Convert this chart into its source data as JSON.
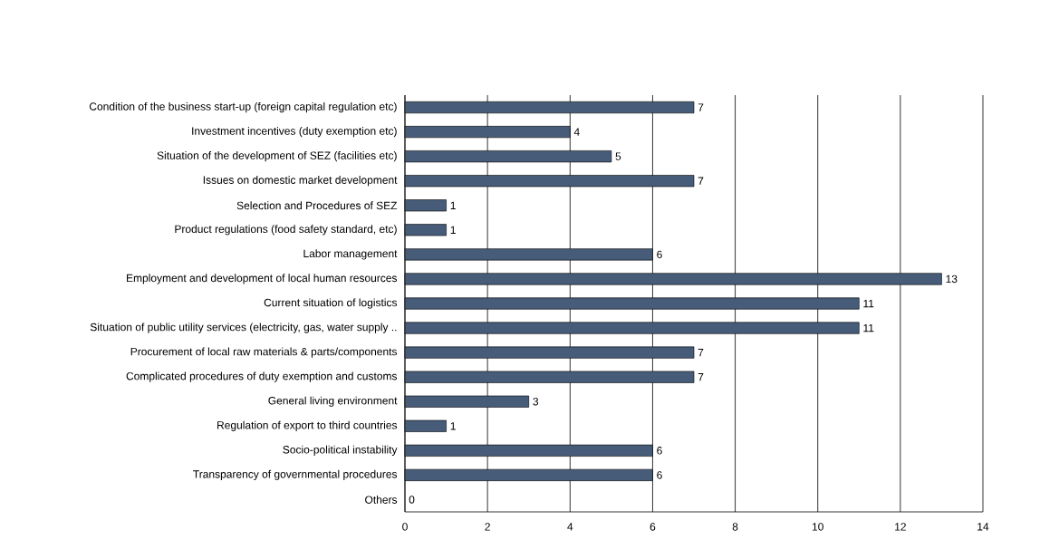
{
  "chart_data": {
    "type": "bar",
    "orientation": "horizontal",
    "categories": [
      "Condition of the business start-up (foreign capital regulation etc)",
      "Investment incentives (duty exemption etc)",
      "Situation of the development of SEZ (facilities etc)",
      "Issues on domestic market development",
      "Selection and Procedures of SEZ",
      "Product regulations (food safety standard, etc)",
      "Labor management",
      "Employment and development of local human resources",
      "Current situation of logistics",
      "Situation of public utility services (electricity, gas, water supply ..",
      "Procurement of local raw materials & parts/components",
      "Complicated procedures of duty exemption and customs",
      "General living environment",
      "Regulation of export to third countries",
      "Socio-political instability",
      "Transparency of governmental procedures",
      "Others"
    ],
    "values": [
      7,
      4,
      5,
      7,
      1,
      1,
      6,
      13,
      11,
      11,
      7,
      7,
      3,
      1,
      6,
      6,
      0
    ],
    "color": "#475c78",
    "xlim": [
      0,
      14
    ],
    "xticks": [
      0,
      2,
      4,
      6,
      8,
      10,
      12,
      14
    ],
    "grid": "x",
    "data_labels": true
  }
}
